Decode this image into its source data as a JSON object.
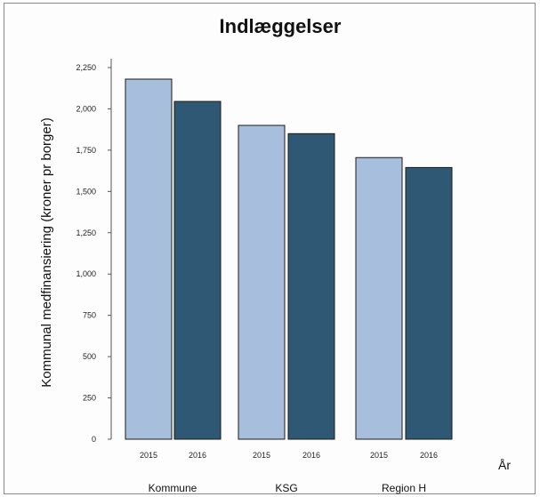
{
  "chart_data": {
    "type": "bar",
    "title": "Indlæggelser",
    "ylabel": "Kommunal medfinansiering (kroner pr borger)",
    "xlabel": "År",
    "ylim": [
      0,
      2250
    ],
    "yticks": [
      0,
      250,
      500,
      750,
      1000,
      1250,
      1500,
      1750,
      2000,
      2250
    ],
    "ytick_labels": [
      "0",
      "250",
      "500",
      "750",
      "1,000",
      "1,250",
      "1,500",
      "1,750",
      "2,000",
      "2,250"
    ],
    "groups": [
      "Kommune",
      "KSG",
      "Region H"
    ],
    "categories": [
      "2015",
      "2016",
      "2015",
      "2016",
      "2015",
      "2016"
    ],
    "values": [
      2180,
      2045,
      1900,
      1850,
      1705,
      1645
    ],
    "colors": [
      "#a8bedd",
      "#2e5873",
      "#a8bedd",
      "#2e5873",
      "#a8bedd",
      "#2e5873"
    ],
    "grid": false,
    "legend": "none"
  }
}
